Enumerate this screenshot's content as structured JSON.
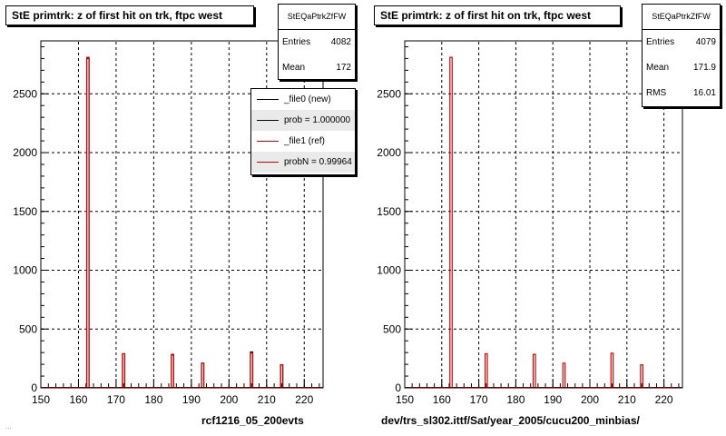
{
  "footer_text": "...",
  "colors": {
    "file0": "#000000",
    "file1": "#cc0000",
    "grid": "#000000",
    "frame": "#000000"
  },
  "left_panel": {
    "title": "StE primtrk: z of first hit on trk, ftpc west",
    "stats": {
      "name": "StEQaPtrkZfFW",
      "rows": [
        {
          "label": "Entries",
          "value": "4082"
        },
        {
          "label": "Mean",
          "value": "172"
        }
      ]
    },
    "legend": [
      {
        "label": "_file0 (new)",
        "color": "#000000"
      },
      {
        "label": "prob = 1.000000",
        "color": "#000000"
      },
      {
        "label": "_file1 (ref)",
        "color": "#cc0000"
      },
      {
        "label": "probN = 0.99964",
        "color": "#cc0000"
      }
    ],
    "caption": "rcf1216_05_200evts"
  },
  "right_panel": {
    "title": "StE primtrk: z of first hit on trk, ftpc west",
    "stats": {
      "name": "StEQaPtrkZfFW",
      "rows": [
        {
          "label": "Entries",
          "value": "4079"
        },
        {
          "label": "Mean",
          "value": "171.9"
        },
        {
          "label": "RMS",
          "value": "16.01"
        }
      ]
    },
    "caption": "dev/trs_sl302.ittf/Sat/year_2005/cucu200_minbias/"
  },
  "chart_data": [
    {
      "type": "bar",
      "title": "StE primtrk: z of first hit on trk, ftpc west",
      "xlabel": "",
      "ylabel": "",
      "xlim": [
        150,
        225
      ],
      "ylim": [
        0,
        2950
      ],
      "xticks": [
        150,
        160,
        170,
        180,
        190,
        200,
        210,
        220
      ],
      "yticks": [
        0,
        500,
        1000,
        1500,
        2000,
        2500
      ],
      "grid": true,
      "legend_position": "top-right",
      "series": [
        {
          "name": "_file0 (new)",
          "color": "#000000",
          "bins": [
            {
              "x": 162.5,
              "value": 2800
            },
            {
              "x": 172,
              "value": 290
            },
            {
              "x": 185,
              "value": 280
            },
            {
              "x": 193,
              "value": 210
            },
            {
              "x": 206,
              "value": 305
            },
            {
              "x": 214,
              "value": 195
            }
          ]
        },
        {
          "name": "_file1 (ref)",
          "color": "#cc0000",
          "bins": [
            {
              "x": 162.5,
              "value": 2810
            },
            {
              "x": 172,
              "value": 290
            },
            {
              "x": 185,
              "value": 285
            },
            {
              "x": 193,
              "value": 210
            },
            {
              "x": 206,
              "value": 295
            },
            {
              "x": 214,
              "value": 195
            }
          ]
        }
      ]
    },
    {
      "type": "bar",
      "title": "StE primtrk: z of first hit on trk, ftpc west",
      "xlabel": "",
      "ylabel": "",
      "xlim": [
        150,
        225
      ],
      "ylim": [
        0,
        2950
      ],
      "xticks": [
        150,
        160,
        170,
        180,
        190,
        200,
        210,
        220
      ],
      "yticks": [
        0,
        500,
        1000,
        1500,
        2000,
        2500
      ],
      "grid": true,
      "series": [
        {
          "name": "",
          "color": "#cc0000",
          "bins": [
            {
              "x": 162.5,
              "value": 2810
            },
            {
              "x": 172,
              "value": 290
            },
            {
              "x": 185,
              "value": 285
            },
            {
              "x": 193,
              "value": 210
            },
            {
              "x": 206,
              "value": 295
            },
            {
              "x": 214,
              "value": 195
            }
          ]
        }
      ]
    }
  ]
}
